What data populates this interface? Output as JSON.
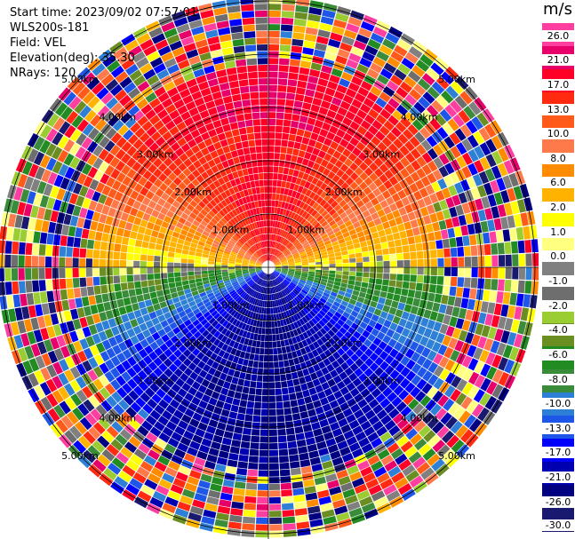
{
  "header": {
    "start_time": "Start time: 2023/09/02 07:57:01",
    "instrument": "WLS200s-181",
    "field": "Field: VEL",
    "elevation": "Elevation(deg): 35.30",
    "nrays": "NRays: 120"
  },
  "colorbar": {
    "unit": "m/s",
    "labels": [
      "26.0",
      "21.0",
      "17.0",
      "13.0",
      "10.0",
      "8.0",
      "6.0",
      "2.0",
      "1.0",
      "0.0",
      "-1.0",
      "-2.0",
      "-4.0",
      "-6.0",
      "-8.0",
      "-10.0",
      "-13.0",
      "-17.0",
      "-21.0",
      "-26.0",
      "-30.0"
    ],
    "colors": [
      "#ff3fa0",
      "#e8006a",
      "#ff0026",
      "#ff2a10",
      "#ff5a1a",
      "#ff7a4a",
      "#ff8c00",
      "#ffb300",
      "#ffff00",
      "#ffff80",
      "#808080",
      "#6e6e6e",
      "#9acd32",
      "#6b8e23",
      "#228b22",
      "#3a8c3a",
      "#2e7fd6",
      "#1e56e8",
      "#0000ff",
      "#0000b0",
      "#000080",
      "#191970"
    ]
  },
  "range_rings": {
    "labels": [
      "1.00km",
      "2.00km",
      "3.00km",
      "4.00km",
      "5.00km"
    ]
  }
}
